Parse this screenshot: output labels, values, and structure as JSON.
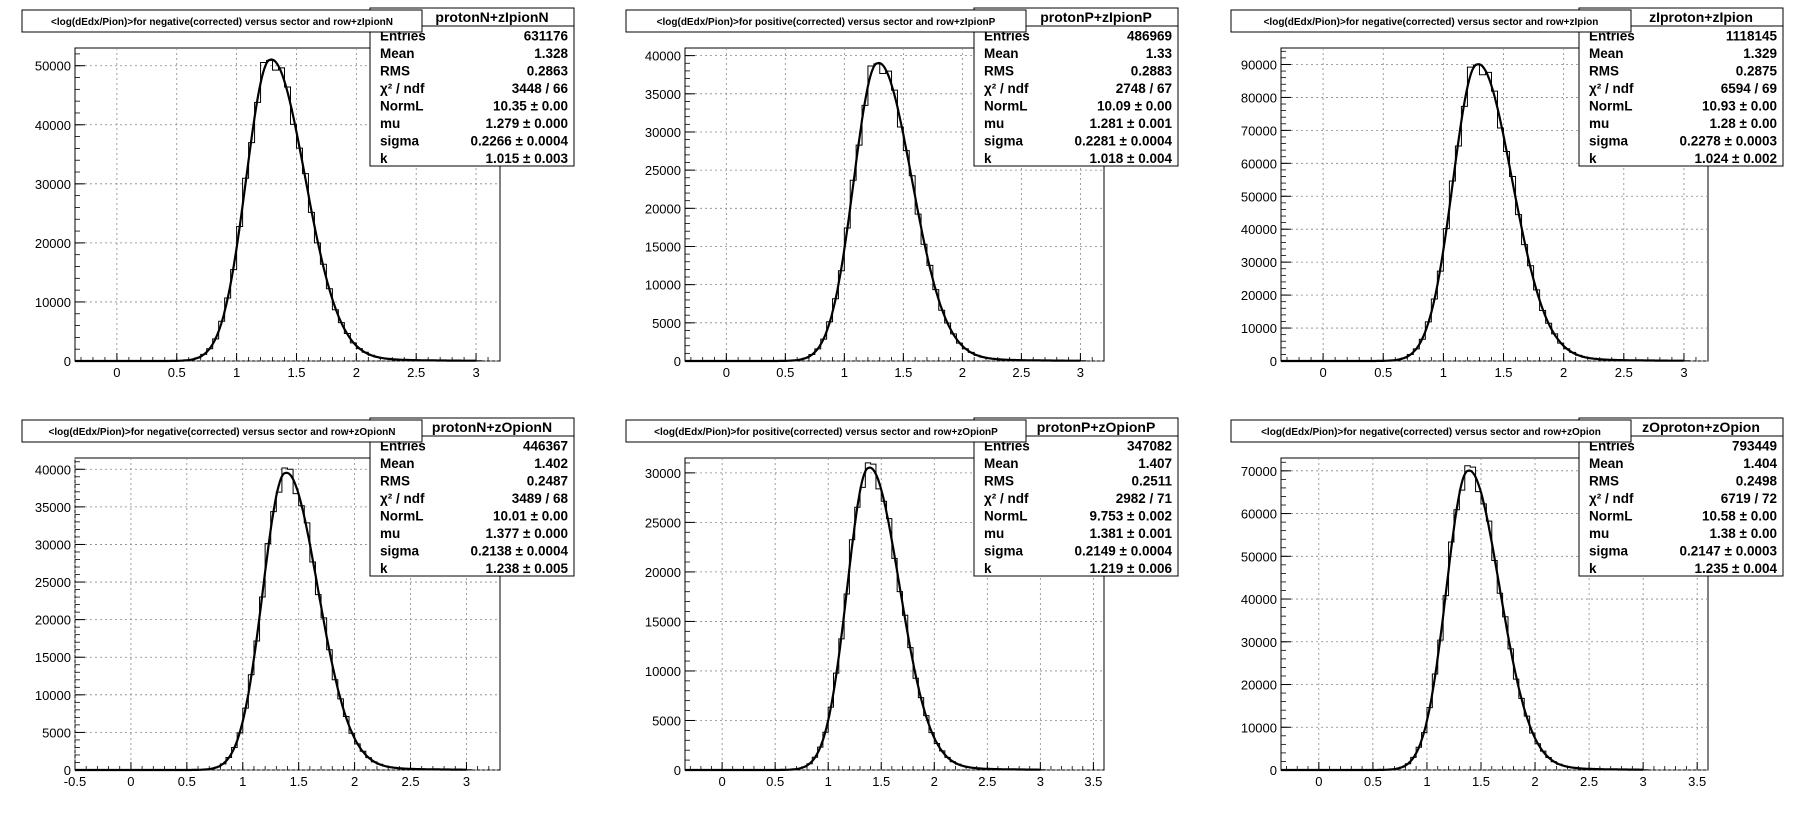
{
  "chart_data": [
    {
      "type": "histogram",
      "stats_title": "protonN+zIpionN",
      "title": "<log(dEdx/Pion)>for negative(corrected) versus sector and row+zIpionN",
      "xlim": [
        -0.35,
        3.2
      ],
      "ylim": [
        0,
        53000
      ],
      "x_ticks": [
        "0",
        "0.5",
        "1",
        "1.5",
        "2",
        "2.5",
        "3"
      ],
      "y_ticks": [
        "0",
        "10000",
        "20000",
        "30000",
        "40000",
        "50000"
      ],
      "peak_x": 1.28,
      "peak_y": 51000,
      "stats": [
        {
          "label": "Entries",
          "value": "631176"
        },
        {
          "label": "Mean",
          "value": "1.328"
        },
        {
          "label": "RMS",
          "value": "0.2863"
        },
        {
          "label": "χ² / ndf",
          "value": "3448 / 66"
        },
        {
          "label": "NormL",
          "value": "10.35 ± 0.00"
        },
        {
          "label": "mu",
          "value": "1.279 ± 0.000"
        },
        {
          "label": "sigma",
          "value": "0.2266 ± 0.0004"
        },
        {
          "label": "k",
          "value": "1.015 ± 0.003"
        }
      ]
    },
    {
      "type": "histogram",
      "stats_title": "protonP+zIpionP",
      "title": "<log(dEdx/Pion)>for positive(corrected) versus sector and row+zIpionP",
      "xlim": [
        -0.35,
        3.2
      ],
      "ylim": [
        0,
        41000
      ],
      "x_ticks": [
        "0",
        "0.5",
        "1",
        "1.5",
        "2",
        "2.5",
        "3"
      ],
      "y_ticks": [
        "0",
        "5000",
        "10000",
        "15000",
        "20000",
        "25000",
        "30000",
        "35000",
        "40000"
      ],
      "peak_x": 1.28,
      "peak_y": 39000,
      "stats": [
        {
          "label": "Entries",
          "value": "486969"
        },
        {
          "label": "Mean",
          "value": "1.33"
        },
        {
          "label": "RMS",
          "value": "0.2883"
        },
        {
          "label": "χ² / ndf",
          "value": "2748 / 67"
        },
        {
          "label": "NormL",
          "value": "10.09 ± 0.00"
        },
        {
          "label": "mu",
          "value": "1.281 ± 0.001"
        },
        {
          "label": "sigma",
          "value": "0.2281 ± 0.0004"
        },
        {
          "label": "k",
          "value": "1.018 ± 0.004"
        }
      ]
    },
    {
      "type": "histogram",
      "stats_title": "zIproton+zIpion",
      "title": "<log(dEdx/Pion)>for negative(corrected) versus sector and row+zIpion",
      "xlim": [
        -0.35,
        3.2
      ],
      "ylim": [
        0,
        95000
      ],
      "x_ticks": [
        "0",
        "0.5",
        "1",
        "1.5",
        "2",
        "2.5",
        "3"
      ],
      "y_ticks": [
        "0",
        "10000",
        "20000",
        "30000",
        "40000",
        "50000",
        "60000",
        "70000",
        "80000",
        "90000"
      ],
      "peak_x": 1.28,
      "peak_y": 90000,
      "stats": [
        {
          "label": "Entries",
          "value": "1118145"
        },
        {
          "label": "Mean",
          "value": "1.329"
        },
        {
          "label": "RMS",
          "value": "0.2875"
        },
        {
          "label": "χ² / ndf",
          "value": "6594 / 69"
        },
        {
          "label": "NormL",
          "value": "10.93 ± 0.00"
        },
        {
          "label": "mu",
          "value": "1.28 ± 0.00"
        },
        {
          "label": "sigma",
          "value": "0.2278 ± 0.0003"
        },
        {
          "label": "k",
          "value": "1.024 ± 0.002"
        }
      ]
    },
    {
      "type": "histogram",
      "stats_title": "protonN+zOpionN",
      "title": "<log(dEdx/Pion)>for negative(corrected) versus sector and row+zOpionN",
      "xlim": [
        -0.5,
        3.3
      ],
      "ylim": [
        0,
        41500
      ],
      "x_ticks": [
        "-0.5",
        "0",
        "0.5",
        "1",
        "1.5",
        "2",
        "2.5",
        "3"
      ],
      "y_ticks": [
        "0",
        "5000",
        "10000",
        "15000",
        "20000",
        "25000",
        "30000",
        "35000",
        "40000"
      ],
      "peak_x": 1.38,
      "peak_y": 39500,
      "stats": [
        {
          "label": "Entries",
          "value": "446367"
        },
        {
          "label": "Mean",
          "value": "1.402"
        },
        {
          "label": "RMS",
          "value": "0.2487"
        },
        {
          "label": "χ² / ndf",
          "value": "3489 / 68"
        },
        {
          "label": "NormL",
          "value": "10.01 ± 0.00"
        },
        {
          "label": "mu",
          "value": "1.377 ± 0.000"
        },
        {
          "label": "sigma",
          "value": "0.2138 ± 0.0004"
        },
        {
          "label": "k",
          "value": "1.238 ± 0.005"
        }
      ]
    },
    {
      "type": "histogram",
      "stats_title": "protonP+zOpionP",
      "title": "<log(dEdx/Pion)>for positive(corrected) versus sector and row+zOpionP",
      "xlim": [
        -0.35,
        3.6
      ],
      "ylim": [
        0,
        31500
      ],
      "x_ticks": [
        "0",
        "0.5",
        "1",
        "1.5",
        "2",
        "2.5",
        "3",
        "3.5"
      ],
      "y_ticks": [
        "0",
        "5000",
        "10000",
        "15000",
        "20000",
        "25000",
        "30000"
      ],
      "peak_x": 1.38,
      "peak_y": 30500,
      "stats": [
        {
          "label": "Entries",
          "value": "347082"
        },
        {
          "label": "Mean",
          "value": "1.407"
        },
        {
          "label": "RMS",
          "value": "0.2511"
        },
        {
          "label": "χ² / ndf",
          "value": "2982 / 71"
        },
        {
          "label": "NormL",
          "value": "9.753 ± 0.002"
        },
        {
          "label": "mu",
          "value": "1.381 ± 0.001"
        },
        {
          "label": "sigma",
          "value": "0.2149 ± 0.0004"
        },
        {
          "label": "k",
          "value": "1.219 ± 0.006"
        }
      ]
    },
    {
      "type": "histogram",
      "stats_title": "zOproton+zOpion",
      "title": "<log(dEdx/Pion)>for negative(corrected) versus sector and row+zOpion",
      "xlim": [
        -0.35,
        3.6
      ],
      "ylim": [
        0,
        73000
      ],
      "x_ticks": [
        "0",
        "0.5",
        "1",
        "1.5",
        "2",
        "2.5",
        "3",
        "3.5"
      ],
      "y_ticks": [
        "0",
        "10000",
        "20000",
        "30000",
        "40000",
        "50000",
        "60000",
        "70000"
      ],
      "peak_x": 1.38,
      "peak_y": 70000,
      "stats": [
        {
          "label": "Entries",
          "value": "793449"
        },
        {
          "label": "Mean",
          "value": "1.404"
        },
        {
          "label": "RMS",
          "value": "0.2498"
        },
        {
          "label": "χ² / ndf",
          "value": "6719 / 72"
        },
        {
          "label": "NormL",
          "value": "10.58 ± 0.00"
        },
        {
          "label": "mu",
          "value": "1.38 ± 0.00"
        },
        {
          "label": "sigma",
          "value": "0.2147 ± 0.0003"
        },
        {
          "label": "k",
          "value": "1.235 ± 0.004"
        }
      ]
    }
  ]
}
